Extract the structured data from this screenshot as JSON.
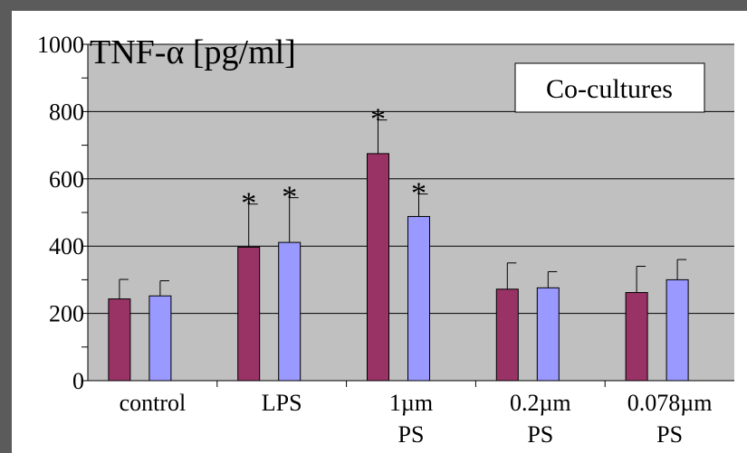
{
  "chart_data": {
    "type": "bar",
    "title": "TNF-α [pg/ml]",
    "annotation": "Co-cultures",
    "categories": [
      [
        "control"
      ],
      [
        "LPS"
      ],
      [
        "1µm",
        "PS"
      ],
      [
        "0.2µm",
        "PS"
      ],
      [
        "0.078µm",
        "PS"
      ]
    ],
    "yticks": [
      "0",
      "200",
      "400",
      "600",
      "800",
      "1000"
    ],
    "ylim": [
      0,
      1000
    ],
    "ytick_step": 200,
    "minor_step": 100,
    "grid": true,
    "colors": {
      "plot_background": "#c0c0c0",
      "series_a": "#993366",
      "series_b": "#9999ff",
      "frame": "#5b5b5b"
    },
    "series": [
      {
        "values": [
          243,
          397,
          675,
          272,
          262
        ],
        "error": [
          58,
          128,
          100,
          78,
          78
        ],
        "significant": [
          false,
          true,
          true,
          false,
          false
        ]
      },
      {
        "values": [
          252,
          411,
          488,
          276,
          300
        ],
        "error": [
          45,
          133,
          67,
          48,
          60
        ],
        "significant": [
          false,
          true,
          true,
          false,
          false
        ]
      }
    ],
    "significance_marker": "*"
  }
}
